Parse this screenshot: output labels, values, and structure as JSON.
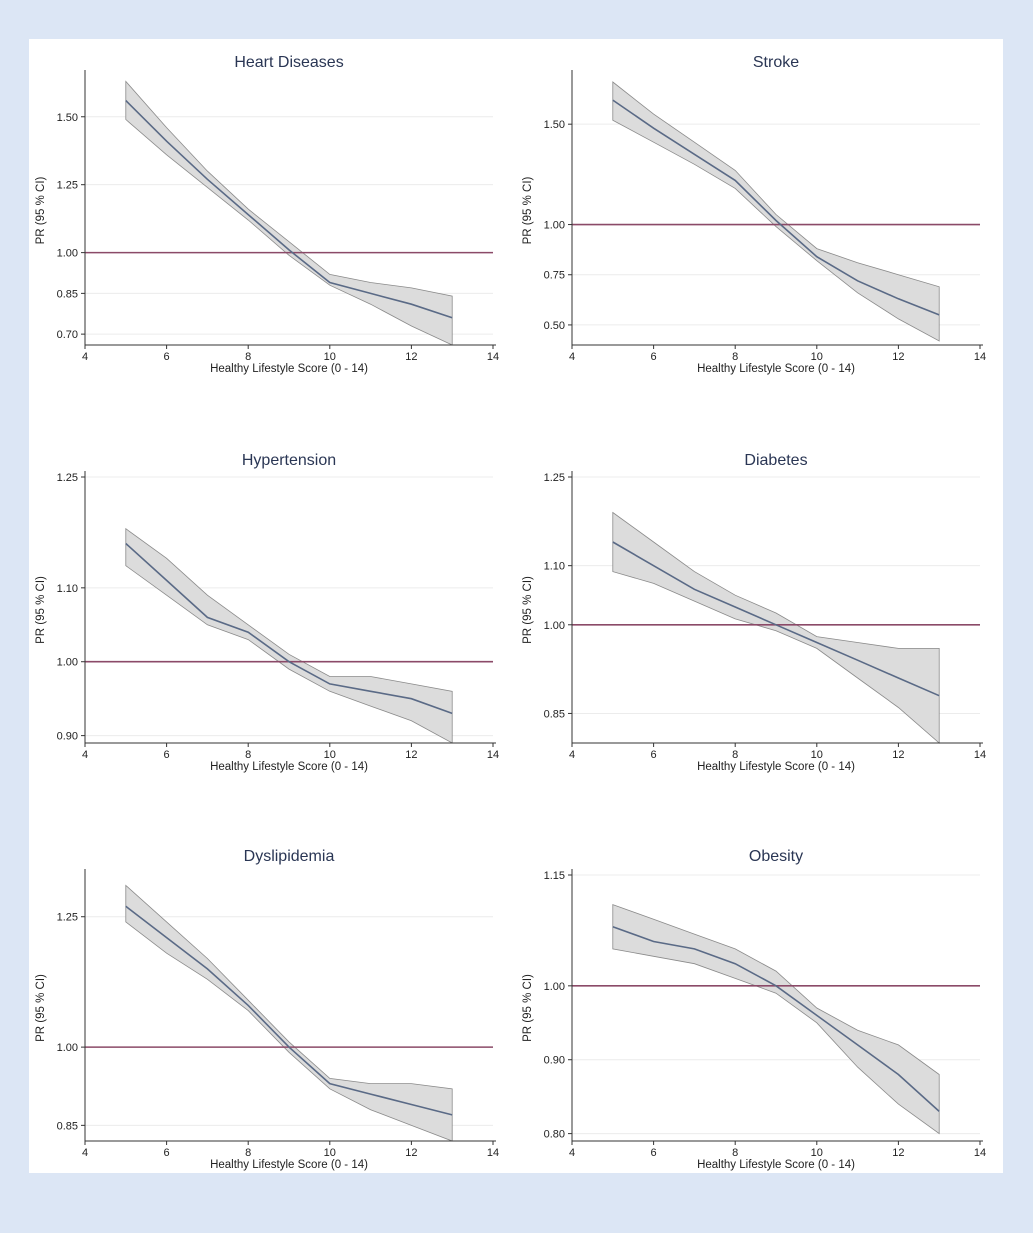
{
  "colors": {
    "page_background": "#dce6f5",
    "figure_background": "#ffffff",
    "fit_line": "#5a6a86",
    "ci_band": "#dcdcdc",
    "ci_edge": "#8a8a8a",
    "reference_line": "#8b4a68",
    "grid": "#ececec"
  },
  "chart_data": [
    {
      "type": "line",
      "title": "Heart Diseases",
      "xlabel": "Healthy Lifestyle Score (0 - 14)",
      "ylabel": "PR (95 % CI)",
      "xlim": [
        4,
        14
      ],
      "xticks": [
        4,
        6,
        8,
        10,
        12,
        14
      ],
      "ylim": [
        0.66,
        1.65
      ],
      "yticks": [
        0.7,
        0.85,
        1.0,
        1.25,
        1.5
      ],
      "ytick_labels": [
        "0.70",
        "0.85",
        "1.00",
        "1.25",
        "1.50"
      ],
      "reference_line": 1.0,
      "grid": true,
      "series": [
        {
          "x": [
            5,
            6,
            7,
            8,
            9,
            10,
            11,
            12,
            13
          ],
          "values": [
            1.56,
            1.41,
            1.27,
            1.14,
            1.01,
            0.89,
            0.85,
            0.81,
            0.76
          ],
          "ci_lower": [
            1.49,
            1.36,
            1.24,
            1.12,
            0.99,
            0.88,
            0.81,
            0.73,
            0.66
          ],
          "ci_upper": [
            1.63,
            1.46,
            1.3,
            1.16,
            1.04,
            0.92,
            0.89,
            0.87,
            0.84
          ]
        }
      ]
    },
    {
      "type": "line",
      "title": "Stroke",
      "xlabel": "Healthy Lifestyle Score (0 - 14)",
      "ylabel": "PR (95 % CI)",
      "xlim": [
        4,
        14
      ],
      "xticks": [
        4,
        6,
        8,
        10,
        12,
        14
      ],
      "ylim": [
        0.4,
        1.74
      ],
      "yticks": [
        0.5,
        0.75,
        1.0,
        1.5
      ],
      "ytick_labels": [
        "0.50",
        "0.75",
        "1.00",
        "1.50"
      ],
      "reference_line": 1.0,
      "grid": true,
      "series": [
        {
          "x": [
            5,
            6,
            7,
            8,
            9,
            10,
            11,
            12,
            13
          ],
          "values": [
            1.62,
            1.48,
            1.35,
            1.22,
            1.02,
            0.84,
            0.72,
            0.63,
            0.55
          ],
          "ci_lower": [
            1.52,
            1.41,
            1.3,
            1.18,
            0.99,
            0.82,
            0.66,
            0.53,
            0.42
          ],
          "ci_upper": [
            1.71,
            1.55,
            1.41,
            1.27,
            1.05,
            0.88,
            0.81,
            0.75,
            0.69
          ]
        }
      ]
    },
    {
      "type": "line",
      "title": "Hypertension",
      "xlabel": "Healthy Lifestyle Score (0 - 14)",
      "ylabel": "PR (95 % CI)",
      "xlim": [
        4,
        14
      ],
      "xticks": [
        4,
        6,
        8,
        10,
        12,
        14
      ],
      "ylim": [
        0.89,
        1.25
      ],
      "yticks": [
        0.9,
        1.0,
        1.1,
        1.25
      ],
      "ytick_labels": [
        "0.90",
        "1.00",
        "1.10",
        "1.25"
      ],
      "reference_line": 1.0,
      "grid": true,
      "series": [
        {
          "x": [
            5,
            6,
            7,
            8,
            9,
            10,
            11,
            12,
            13
          ],
          "values": [
            1.16,
            1.11,
            1.06,
            1.04,
            1.0,
            0.97,
            0.96,
            0.95,
            0.93
          ],
          "ci_lower": [
            1.13,
            1.09,
            1.05,
            1.03,
            0.99,
            0.96,
            0.94,
            0.92,
            0.89
          ],
          "ci_upper": [
            1.18,
            1.14,
            1.09,
            1.05,
            1.01,
            0.98,
            0.98,
            0.97,
            0.96
          ]
        }
      ]
    },
    {
      "type": "line",
      "title": "Diabetes",
      "xlabel": "Healthy Lifestyle Score (0 - 14)",
      "ylabel": "PR (95 % CI)",
      "xlim": [
        4,
        14
      ],
      "xticks": [
        4,
        6,
        8,
        10,
        12,
        14
      ],
      "ylim": [
        0.8,
        1.25
      ],
      "yticks": [
        0.85,
        1.0,
        1.1,
        1.25
      ],
      "ytick_labels": [
        "0.85",
        "1.00",
        "1.10",
        "1.25"
      ],
      "reference_line": 1.0,
      "grid": true,
      "series": [
        {
          "x": [
            5,
            6,
            7,
            8,
            9,
            10,
            11,
            12,
            13
          ],
          "values": [
            1.14,
            1.1,
            1.06,
            1.03,
            1.0,
            0.97,
            0.94,
            0.91,
            0.88
          ],
          "ci_lower": [
            1.09,
            1.07,
            1.04,
            1.01,
            0.99,
            0.96,
            0.91,
            0.86,
            0.8
          ],
          "ci_upper": [
            1.19,
            1.14,
            1.09,
            1.05,
            1.02,
            0.98,
            0.97,
            0.96,
            0.96
          ]
        }
      ]
    },
    {
      "type": "line",
      "title": "Dyslipidemia",
      "xlabel": "Healthy Lifestyle Score (0 - 14)",
      "ylabel": "PR (95 % CI)",
      "xlim": [
        4,
        14
      ],
      "xticks": [
        4,
        6,
        8,
        10,
        12,
        14
      ],
      "ylim": [
        0.82,
        1.33
      ],
      "yticks": [
        0.85,
        1.0,
        1.25
      ],
      "ytick_labels": [
        "0.85",
        "1.00",
        "1.25"
      ],
      "reference_line": 1.0,
      "grid": true,
      "series": [
        {
          "x": [
            5,
            6,
            7,
            8,
            9,
            10,
            11,
            12,
            13
          ],
          "values": [
            1.27,
            1.21,
            1.15,
            1.08,
            1.0,
            0.93,
            0.91,
            0.89,
            0.87
          ],
          "ci_lower": [
            1.24,
            1.18,
            1.13,
            1.07,
            0.99,
            0.92,
            0.88,
            0.85,
            0.82
          ],
          "ci_upper": [
            1.31,
            1.24,
            1.17,
            1.09,
            1.01,
            0.94,
            0.93,
            0.93,
            0.92
          ]
        }
      ]
    },
    {
      "type": "line",
      "title": "Obesity",
      "xlabel": "Healthy Lifestyle Score (0 - 14)",
      "ylabel": "PR (95 % CI)",
      "xlim": [
        4,
        14
      ],
      "xticks": [
        4,
        6,
        8,
        10,
        12,
        14
      ],
      "ylim": [
        0.79,
        1.15
      ],
      "yticks": [
        0.8,
        0.9,
        1.0,
        1.15
      ],
      "ytick_labels": [
        "0.80",
        "0.90",
        "1.00",
        "1.15"
      ],
      "reference_line": 1.0,
      "grid": true,
      "series": [
        {
          "x": [
            5,
            6,
            7,
            8,
            9,
            10,
            11,
            12,
            13
          ],
          "values": [
            1.08,
            1.06,
            1.05,
            1.03,
            1.0,
            0.96,
            0.92,
            0.88,
            0.83
          ],
          "ci_lower": [
            1.05,
            1.04,
            1.03,
            1.01,
            0.99,
            0.95,
            0.89,
            0.84,
            0.8
          ],
          "ci_upper": [
            1.11,
            1.09,
            1.07,
            1.05,
            1.02,
            0.97,
            0.94,
            0.92,
            0.88
          ]
        }
      ]
    }
  ]
}
